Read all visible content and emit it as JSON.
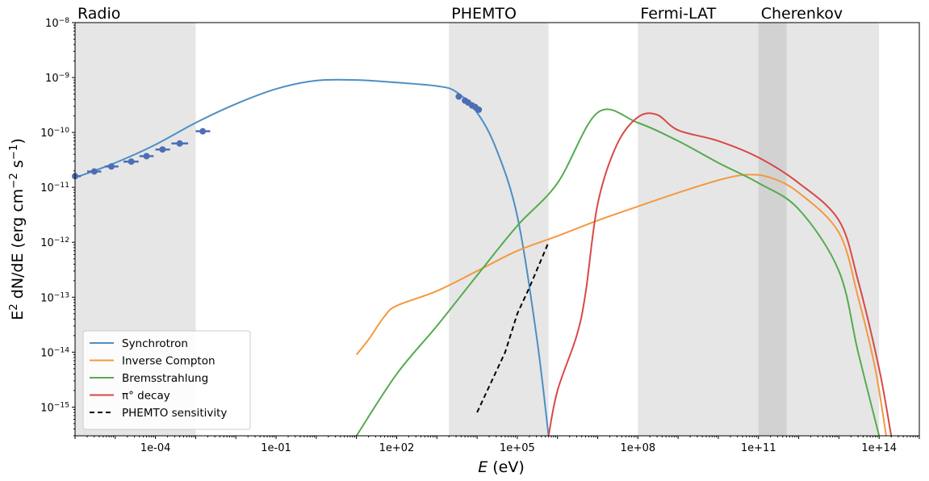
{
  "chart_data": {
    "type": "line",
    "xlabel": "E (eV)",
    "ylabel": "E^2 dN/dE (erg cm^-2 s^-1)",
    "x_scale": "log",
    "y_scale": "log",
    "xlim": [
      1e-06,
      1000000000000000.0
    ],
    "ylim": [
      3e-16,
      1e-08
    ],
    "grid": false,
    "legend_position": "lower-left",
    "x_ticks": [
      {
        "value": 0.0001,
        "label": "1e-04"
      },
      {
        "value": 0.1,
        "label": "1e-01"
      },
      {
        "value": 100,
        "label": "1e+02"
      },
      {
        "value": 100000,
        "label": "1e+05"
      },
      {
        "value": 100000000,
        "label": "1e+08"
      },
      {
        "value": 100000000000,
        "label": "1e+11"
      },
      {
        "value": 100000000000000,
        "label": "1e+14"
      }
    ],
    "y_ticks": [
      {
        "value": 1e-15,
        "label": "10^-15"
      },
      {
        "value": 1e-14,
        "label": "10^-14"
      },
      {
        "value": 1e-13,
        "label": "10^-13"
      },
      {
        "value": 1e-12,
        "label": "10^-12"
      },
      {
        "value": 1e-11,
        "label": "10^-11"
      },
      {
        "value": 1e-10,
        "label": "10^-10"
      },
      {
        "value": 1e-09,
        "label": "10^-9"
      },
      {
        "value": 1e-08,
        "label": "10^-8"
      }
    ],
    "bands": [
      {
        "label": "Radio",
        "x_range": [
          1e-06,
          0.001
        ]
      },
      {
        "label": "PHEMTO",
        "x_range": [
          2000,
          600000
        ]
      },
      {
        "label": "Fermi-LAT",
        "x_range": [
          100000000,
          500000000000
        ]
      },
      {
        "label": "Cherenkov",
        "x_range": [
          100000000000,
          100000000000000
        ]
      }
    ],
    "series": [
      {
        "name": "Synchrotron",
        "color": "#4c8fc4",
        "style": "solid",
        "points": [
          [
            1e-06,
            1.5e-11
          ],
          [
            1e-05,
            2.8e-11
          ],
          [
            0.0001,
            6e-11
          ],
          [
            0.001,
            1.5e-10
          ],
          [
            0.01,
            3.3e-10
          ],
          [
            0.1,
            6.2e-10
          ],
          [
            1,
            8.8e-10
          ],
          [
            10,
            9e-10
          ],
          [
            100,
            8.1e-10
          ],
          [
            1000,
            7e-10
          ],
          [
            3000,
            5.5e-10
          ],
          [
            10000,
            2.3e-10
          ],
          [
            30000,
            5e-11
          ],
          [
            100000,
            3e-12
          ],
          [
            300000,
            2e-14
          ],
          [
            600000,
            3e-16
          ]
        ]
      },
      {
        "name": "Inverse Compton",
        "color": "#f4993d",
        "style": "solid",
        "points": [
          [
            10,
            9e-15
          ],
          [
            20,
            1.7e-14
          ],
          [
            50,
            4.5e-14
          ],
          [
            100,
            7e-14
          ],
          [
            1000,
            1.3e-13
          ],
          [
            10000,
            3e-13
          ],
          [
            100000,
            7e-13
          ],
          [
            1000000,
            1.3e-12
          ],
          [
            10000000,
            2.5e-12
          ],
          [
            100000000,
            4.5e-12
          ],
          [
            1000000000,
            8e-12
          ],
          [
            10000000000,
            1.35e-11
          ],
          [
            50000000000,
            1.7e-11
          ],
          [
            200000000000,
            1.5e-11
          ],
          [
            1000000000000,
            8e-12
          ],
          [
            10000000000000,
            1.5e-12
          ],
          [
            30000000000000,
            1e-13
          ],
          [
            80000000000000,
            5e-15
          ],
          [
            150000000000000,
            3e-16
          ]
        ]
      },
      {
        "name": "Bremsstrahlung",
        "color": "#54ab4e",
        "style": "solid",
        "points": [
          [
            10,
            3e-16
          ],
          [
            100,
            4e-15
          ],
          [
            1000,
            3e-14
          ],
          [
            10000,
            2.5e-13
          ],
          [
            100000,
            2e-12
          ],
          [
            1000000,
            1.2e-11
          ],
          [
            10000000,
            2.3e-10
          ],
          [
            100000000,
            1.5e-10
          ],
          [
            1000000000,
            7e-11
          ],
          [
            10000000000,
            2.8e-11
          ],
          [
            100000000000,
            1.2e-11
          ],
          [
            1000000000000,
            4e-12
          ],
          [
            10000000000000,
            3e-13
          ],
          [
            30000000000000,
            1e-14
          ],
          [
            100000000000000,
            3e-16
          ]
        ]
      },
      {
        "name": "π° decay",
        "color": "#d94848",
        "style": "solid",
        "points": [
          [
            600000,
            3e-16
          ],
          [
            1000000,
            2e-15
          ],
          [
            3000000,
            2e-14
          ],
          [
            5000000,
            1.2e-13
          ],
          [
            10000000,
            5e-12
          ],
          [
            30000000,
            6e-11
          ],
          [
            100000000,
            1.9e-10
          ],
          [
            300000000,
            2.1e-10
          ],
          [
            1000000000,
            1.1e-10
          ],
          [
            10000000000,
            7e-11
          ],
          [
            100000000000,
            3.5e-11
          ],
          [
            1000000000000,
            1.2e-11
          ],
          [
            10000000000000,
            2.5e-12
          ],
          [
            30000000000000,
            2e-13
          ],
          [
            100000000000000,
            5e-15
          ],
          [
            200000000000000,
            3e-16
          ]
        ]
      },
      {
        "name": "PHEMTO sensitivity",
        "color": "#000000",
        "style": "dashed",
        "points": [
          [
            10000,
            8e-16
          ],
          [
            50000,
            1e-14
          ],
          [
            100000,
            5e-14
          ],
          [
            200000,
            1.5e-13
          ],
          [
            600000,
            1e-12
          ]
        ]
      }
    ],
    "radio_data": {
      "color": "#4c6eb5",
      "points": [
        {
          "x": 1e-06,
          "y": 1.6e-11,
          "xlo": 7e-07,
          "xhi": 1.4e-06
        },
        {
          "x": 3e-06,
          "y": 1.95e-11,
          "xlo": 2e-06,
          "xhi": 4.5e-06
        },
        {
          "x": 8e-06,
          "y": 2.4e-11,
          "xlo": 5.5e-06,
          "xhi": 1.2e-05
        },
        {
          "x": 2.5e-05,
          "y": 2.95e-11,
          "xlo": 1.6e-05,
          "xhi": 3.8e-05
        },
        {
          "x": 6e-05,
          "y": 3.7e-11,
          "xlo": 4e-05,
          "xhi": 9e-05
        },
        {
          "x": 0.00015,
          "y": 4.9e-11,
          "xlo": 0.0001,
          "xhi": 0.00023
        },
        {
          "x": 0.0004,
          "y": 6.3e-11,
          "xlo": 0.00025,
          "xhi": 0.00065
        },
        {
          "x": 0.0015,
          "y": 1.05e-10,
          "xlo": 0.001,
          "xhi": 0.0023
        }
      ]
    },
    "xray_data": {
      "color": "#4c6eb5",
      "points": [
        [
          3500,
          4.5e-10
        ],
        [
          5000,
          3.8e-10
        ],
        [
          6000,
          3.5e-10
        ],
        [
          7500,
          3.1e-10
        ],
        [
          9000,
          2.9e-10
        ],
        [
          11000,
          2.6e-10
        ]
      ]
    }
  }
}
